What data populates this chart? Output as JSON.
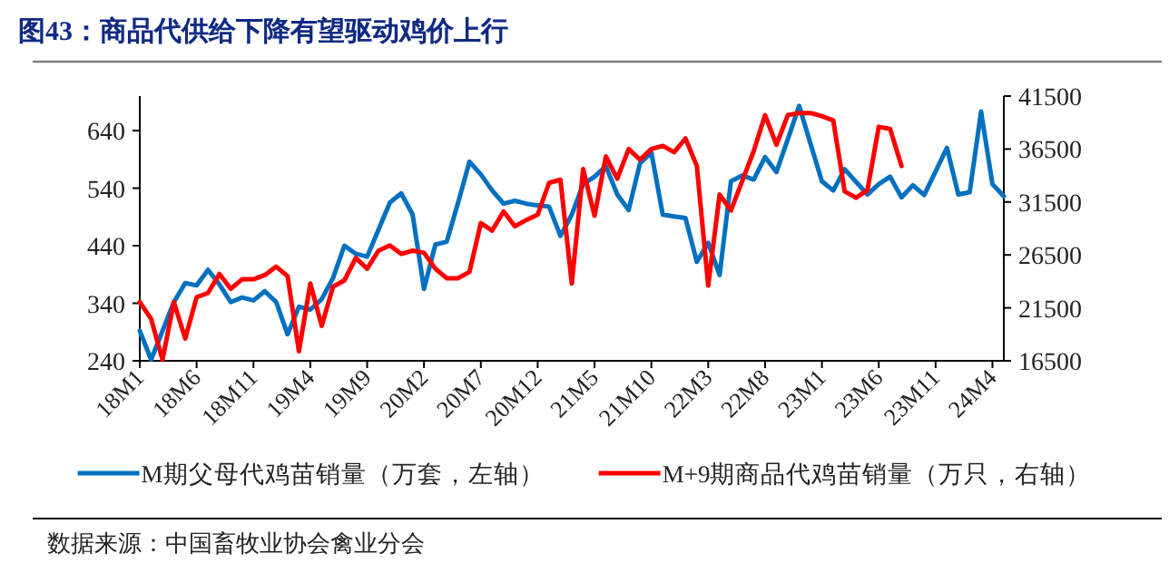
{
  "chart_data": {
    "type": "line",
    "title": "图43：商品代供给下降有望驱动鸡价上行",
    "categories": [
      "18M1",
      null,
      null,
      null,
      null,
      "18M6",
      null,
      null,
      null,
      null,
      "18M11",
      null,
      null,
      null,
      null,
      "19M4",
      null,
      null,
      null,
      null,
      "19M9",
      null,
      null,
      null,
      null,
      "20M2",
      null,
      null,
      null,
      null,
      "20M7",
      null,
      null,
      null,
      null,
      "20M12",
      null,
      null,
      null,
      null,
      "21M5",
      null,
      null,
      null,
      null,
      "21M10",
      null,
      null,
      null,
      null,
      "22M3",
      null,
      null,
      null,
      null,
      "22M8",
      null,
      null,
      null,
      null,
      "23M1",
      null,
      null,
      null,
      null,
      "23M6",
      null,
      null,
      null,
      null,
      "23M11",
      null,
      null,
      null,
      null,
      "24M4",
      null
    ],
    "series": [
      {
        "name": "M期父母代鸡苗销量（万套，左轴）",
        "color": "#0070c0",
        "values": [
          292,
          242,
          292,
          342,
          375,
          371,
          398,
          373,
          342,
          350,
          345,
          361,
          342,
          286,
          334,
          329,
          347,
          384,
          440,
          426,
          421,
          468,
          515,
          531,
          494,
          365,
          442,
          447,
          515,
          586,
          564,
          536,
          513,
          518,
          513,
          510,
          508,
          457,
          494,
          547,
          560,
          578,
          529,
          502,
          583,
          602,
          494,
          491,
          488,
          412,
          445,
          389,
          552,
          562,
          555,
          594,
          568,
          625,
          683,
          617,
          552,
          536,
          573,
          551,
          529,
          547,
          560,
          524,
          545,
          528,
          569,
          610,
          529,
          533,
          673,
          547,
          526
        ]
      },
      {
        "name": "M+9期商品代鸡苗销量（万只，右轴）",
        "color": "#ff0000",
        "axis": "y2",
        "values": [
          22050,
          20450,
          16600,
          22050,
          18600,
          22500,
          22900,
          24700,
          23300,
          24200,
          24200,
          24600,
          25400,
          24500,
          17400,
          23800,
          19800,
          23500,
          24100,
          26200,
          25200,
          26900,
          27400,
          26600,
          26900,
          26700,
          25200,
          24300,
          24300,
          24900,
          29500,
          28800,
          30600,
          29200,
          29800,
          30300,
          33300,
          33600,
          23800,
          34600,
          30200,
          35800,
          33700,
          36500,
          35500,
          36500,
          36800,
          36200,
          37500,
          34900,
          23600,
          32200,
          30700,
          33500,
          36300,
          39700,
          36900,
          39700,
          39900,
          39900,
          39600,
          39200,
          32500,
          31900,
          32600,
          38600,
          38400,
          34900,
          null,
          null,
          null,
          null,
          null,
          null,
          null,
          null,
          null
        ]
      }
    ],
    "ylim": [
      240,
      700
    ],
    "yticks": [
      240,
      340,
      440,
      540,
      640
    ],
    "y2lim": [
      16500,
      41500
    ],
    "y2ticks": [
      16500,
      21500,
      26500,
      31500,
      36500,
      41500
    ],
    "legend": "bottom",
    "annotations": [
      "数据来源：中国畜牧业协会禽业分会"
    ]
  }
}
